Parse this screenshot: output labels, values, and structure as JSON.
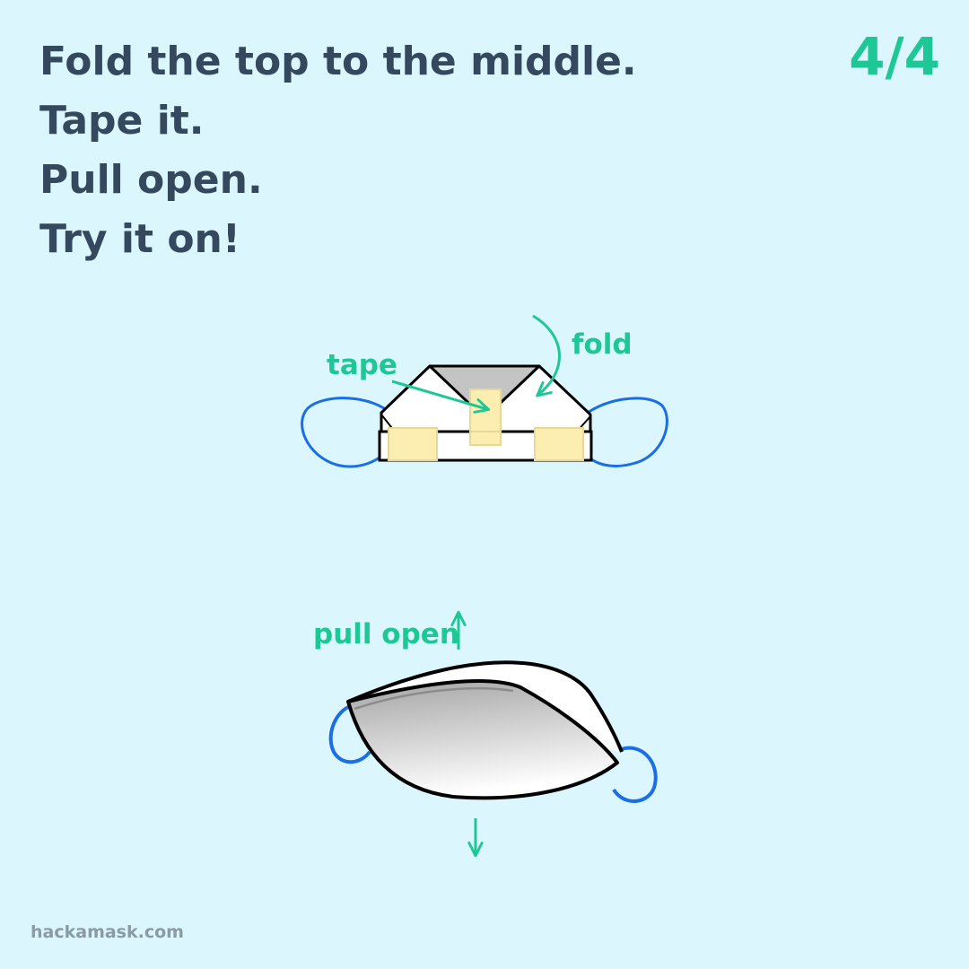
{
  "instructions": [
    "Fold the top to the middle.",
    "Tape it.",
    "Pull open.",
    "Try it on!"
  ],
  "page_counter": "4/4",
  "labels": {
    "tape": "tape",
    "fold": "fold",
    "pull_open": "pull open"
  },
  "footer": "hackamask.com",
  "colors": {
    "background": "#dcf6fd",
    "heading_text": "#34495e",
    "accent": "#1ec896",
    "ear_loop": "#1a6ee6",
    "tape": "#fbeeb0",
    "footer_text": "#8a9aa6"
  }
}
